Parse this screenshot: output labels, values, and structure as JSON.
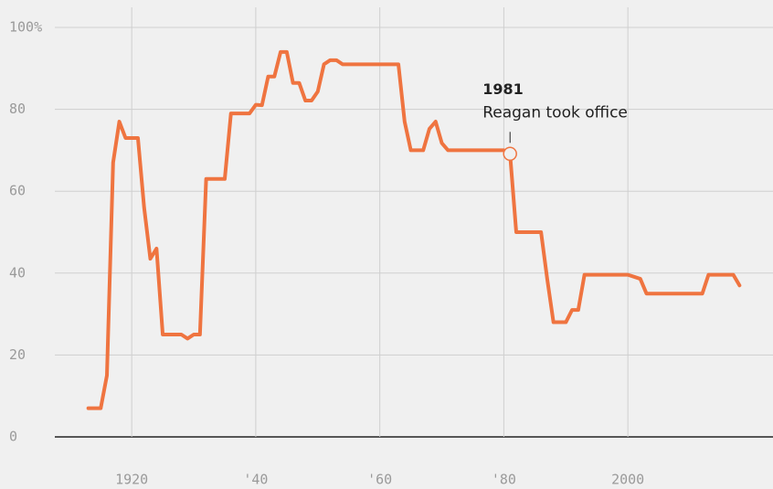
{
  "chart_data": {
    "type": "line",
    "x": [
      1913,
      1914,
      1915,
      1916,
      1917,
      1918,
      1919,
      1920,
      1921,
      1922,
      1923,
      1924,
      1925,
      1926,
      1927,
      1928,
      1929,
      1930,
      1931,
      1932,
      1933,
      1934,
      1935,
      1936,
      1937,
      1938,
      1939,
      1940,
      1941,
      1942,
      1943,
      1944,
      1945,
      1946,
      1947,
      1948,
      1949,
      1950,
      1951,
      1952,
      1953,
      1954,
      1955,
      1956,
      1957,
      1958,
      1959,
      1960,
      1961,
      1962,
      1963,
      1964,
      1965,
      1966,
      1967,
      1968,
      1969,
      1970,
      1971,
      1972,
      1973,
      1974,
      1975,
      1976,
      1977,
      1978,
      1979,
      1980,
      1981,
      1982,
      1983,
      1984,
      1985,
      1986,
      1987,
      1988,
      1989,
      1990,
      1991,
      1992,
      1993,
      1994,
      1995,
      1996,
      1997,
      1998,
      1999,
      2000,
      2001,
      2002,
      2003,
      2004,
      2005,
      2006,
      2007,
      2008,
      2009,
      2010,
      2011,
      2012,
      2013,
      2014,
      2015,
      2016,
      2017,
      2018
    ],
    "series": [
      {
        "color": "#ef7440",
        "values": [
          7,
          7,
          7,
          15,
          67,
          77,
          73,
          73,
          73,
          56,
          43.5,
          46,
          25,
          25,
          25,
          25,
          24,
          25,
          25,
          63,
          63,
          63,
          63,
          79,
          79,
          79,
          79,
          81.1,
          81,
          88,
          88,
          94,
          94,
          86.45,
          86.45,
          82.13,
          82.13,
          84.36,
          91,
          92,
          92,
          91,
          91,
          91,
          91,
          91,
          91,
          91,
          91,
          91,
          91,
          77,
          70,
          70,
          70,
          75.25,
          77,
          71.75,
          70,
          70,
          70,
          70,
          70,
          70,
          70,
          70,
          70,
          70,
          69.13,
          50,
          50,
          50,
          50,
          50,
          38.5,
          28,
          28,
          28,
          31,
          31,
          39.6,
          39.6,
          39.6,
          39.6,
          39.6,
          39.6,
          39.6,
          39.6,
          39.1,
          38.6,
          35,
          35,
          35,
          35,
          35,
          35,
          35,
          35,
          35,
          35,
          39.6,
          39.6,
          39.6,
          39.6,
          39.6,
          37
        ]
      }
    ],
    "xlim": [
      1907.6,
      2023.4
    ],
    "xticks": [
      1920,
      {
        "value": 1940,
        "label": "'40"
      },
      {
        "value": 1960,
        "label": "'60"
      },
      {
        "value": 1980,
        "label": "'80"
      },
      2000
    ],
    "ylim": [
      0,
      100
    ],
    "yticks": [
      0,
      20,
      40,
      60,
      80,
      {
        "value": 100,
        "label": "100%"
      }
    ],
    "grid": true,
    "annotation": {
      "x": 1981,
      "label": "1981",
      "text": "Reagan took office"
    }
  }
}
